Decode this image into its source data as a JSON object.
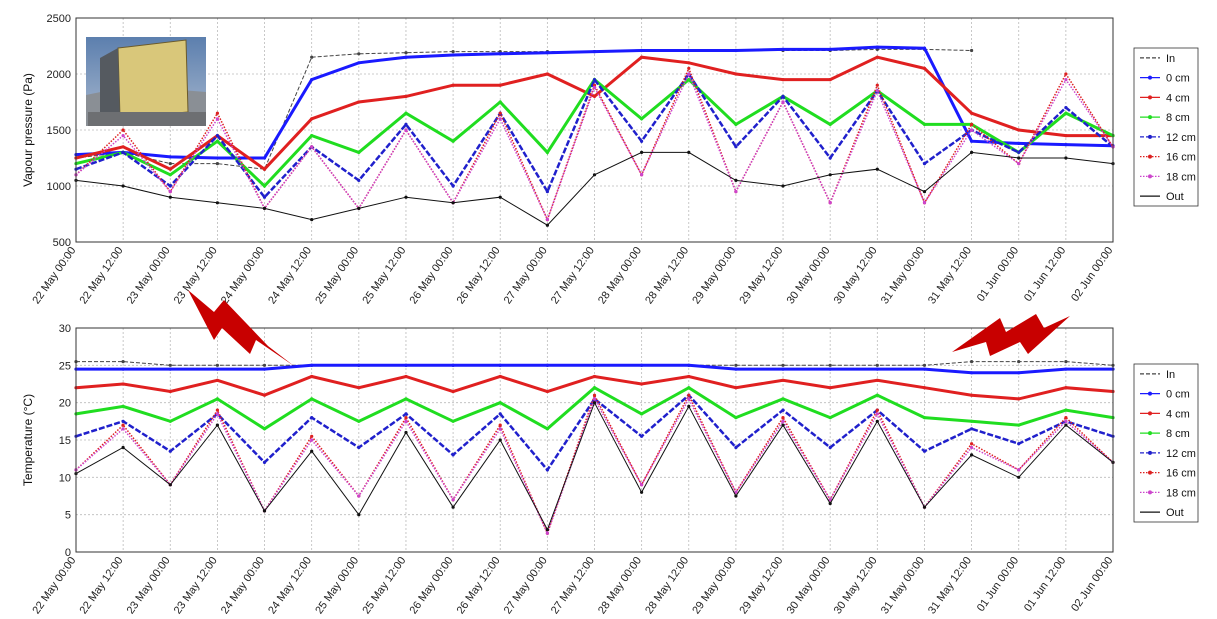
{
  "chart_data": [
    {
      "type": "line",
      "ylabel": "Vapour pressure (Pa)",
      "ylim": [
        500,
        2500
      ],
      "yticks": [
        500,
        1000,
        1500,
        2000,
        2500
      ],
      "grid": true,
      "legend": "right",
      "x_start": "22 May 00:00",
      "x_end": "02 Jun 00:00",
      "x_tick_labels": [
        "22 May 00:00",
        "22 May 12:00",
        "23 May 00:00",
        "23 May 12:00",
        "24 May 00:00",
        "24 May 12:00",
        "25 May 00:00",
        "25 May 12:00",
        "26 May 00:00",
        "26 May 12:00",
        "27 May 00:00",
        "27 May 12:00",
        "28 May 00:00",
        "28 May 12:00",
        "29 May 00:00",
        "29 May 12:00",
        "30 May 00:00",
        "30 May 12:00",
        "31 May 00:00",
        "31 May 12:00",
        "01 Jun 00:00",
        "01 Jun 12:00",
        "02 Jun 00:00"
      ],
      "x": [
        "22 May 00:00",
        "22 May 12:00",
        "23 May 00:00",
        "23 May 12:00",
        "24 May 00:00",
        "24 May 12:00",
        "25 May 00:00",
        "25 May 12:00",
        "26 May 00:00",
        "26 May 12:00",
        "27 May 00:00",
        "27 May 12:00",
        "28 May 00:00",
        "28 May 12:00",
        "29 May 00:00",
        "29 May 12:00",
        "30 May 00:00",
        "30 May 12:00",
        "31 May 00:00",
        "31 May 12:00",
        "01 Jun 00:00",
        "01 Jun 12:00",
        "02 Jun 00:00"
      ],
      "series": [
        {
          "name": "In",
          "color": "#444444",
          "style": "dash",
          "values": [
            1250,
            1300,
            1200,
            1200,
            1150,
            2150,
            2180,
            2190,
            2200,
            2200,
            2200,
            2200,
            2210,
            2210,
            2210,
            2210,
            2210,
            2220,
            2220,
            2210,
            null,
            null,
            null
          ]
        },
        {
          "name": "0 cm",
          "color": "#1a1aff",
          "style": "marker",
          "values": [
            1280,
            1300,
            1260,
            1250,
            1250,
            1950,
            2100,
            2150,
            2170,
            2180,
            2190,
            2200,
            2210,
            2210,
            2210,
            2220,
            2220,
            2240,
            2230,
            1400,
            1380,
            1370,
            1360
          ]
        },
        {
          "name": "4 cm",
          "color": "#e02020",
          "style": "marker",
          "values": [
            1250,
            1350,
            1150,
            1450,
            1150,
            1600,
            1750,
            1800,
            1900,
            1900,
            2000,
            1800,
            2150,
            2100,
            2000,
            1950,
            1950,
            2150,
            2050,
            1650,
            1500,
            1450,
            1450
          ]
        },
        {
          "name": "8 cm",
          "color": "#20dd20",
          "style": "marker",
          "values": [
            1200,
            1300,
            1100,
            1400,
            1000,
            1450,
            1300,
            1650,
            1400,
            1750,
            1300,
            1950,
            1600,
            1950,
            1550,
            1800,
            1550,
            1850,
            1550,
            1550,
            1300,
            1650,
            1450
          ]
        },
        {
          "name": "12 cm",
          "color": "#2020cc",
          "style": "dashmarker",
          "values": [
            1150,
            1300,
            1000,
            1450,
            900,
            1350,
            1050,
            1550,
            1000,
            1650,
            950,
            1950,
            1400,
            2000,
            1350,
            1800,
            1250,
            1850,
            1200,
            1500,
            1300,
            1700,
            1350
          ]
        },
        {
          "name": "16 cm",
          "color": "#dd2020",
          "style": "dot",
          "values": [
            1100,
            1500,
            950,
            1650,
            800,
            1350,
            800,
            1500,
            850,
            1650,
            700,
            1900,
            1100,
            2050,
            950,
            1750,
            850,
            1900,
            850,
            1550,
            1200,
            2000,
            1350
          ]
        },
        {
          "name": "18 cm",
          "color": "#cc44cc",
          "style": "dot",
          "values": [
            1100,
            1450,
            950,
            1600,
            800,
            1350,
            800,
            1500,
            850,
            1600,
            700,
            1880,
            1100,
            2000,
            950,
            1750,
            850,
            1850,
            850,
            1500,
            1200,
            1950,
            1350
          ]
        },
        {
          "name": "Out",
          "color": "#111111",
          "style": "line",
          "values": [
            1050,
            1000,
            900,
            850,
            800,
            700,
            800,
            900,
            850,
            900,
            650,
            1100,
            1300,
            1300,
            1050,
            1000,
            1100,
            1150,
            950,
            1300,
            1250,
            1250,
            1200
          ]
        }
      ]
    },
    {
      "type": "line",
      "ylabel": "Temperature (°C)",
      "ylim": [
        0,
        30
      ],
      "yticks": [
        0,
        5,
        10,
        15,
        20,
        25,
        30
      ],
      "grid": true,
      "legend": "right",
      "x_start": "22 May 00:00",
      "x_end": "02 Jun 00:00",
      "x_tick_labels": [
        "22 May 00:00",
        "22 May 12:00",
        "23 May 00:00",
        "23 May 12:00",
        "24 May 00:00",
        "24 May 12:00",
        "25 May 00:00",
        "25 May 12:00",
        "26 May 00:00",
        "26 May 12:00",
        "27 May 00:00",
        "27 May 12:00",
        "28 May 00:00",
        "28 May 12:00",
        "29 May 00:00",
        "29 May 12:00",
        "30 May 00:00",
        "30 May 12:00",
        "31 May 00:00",
        "31 May 12:00",
        "01 Jun 00:00",
        "01 Jun 12:00",
        "02 Jun 00:00"
      ],
      "x": [
        "22 May 00:00",
        "22 May 12:00",
        "23 May 00:00",
        "23 May 12:00",
        "24 May 00:00",
        "24 May 12:00",
        "25 May 00:00",
        "25 May 12:00",
        "26 May 00:00",
        "26 May 12:00",
        "27 May 00:00",
        "27 May 12:00",
        "28 May 00:00",
        "28 May 12:00",
        "29 May 00:00",
        "29 May 12:00",
        "30 May 00:00",
        "30 May 12:00",
        "31 May 00:00",
        "31 May 12:00",
        "01 Jun 00:00",
        "01 Jun 12:00",
        "02 Jun 00:00"
      ],
      "series": [
        {
          "name": "In",
          "color": "#444444",
          "style": "dash",
          "values": [
            25.5,
            25.5,
            25,
            25,
            25,
            25,
            25,
            25,
            25,
            25,
            25,
            25,
            25,
            25,
            25,
            25,
            25,
            25,
            25,
            25.5,
            25.5,
            25.5,
            25
          ]
        },
        {
          "name": "0 cm",
          "color": "#1a1aff",
          "style": "marker",
          "values": [
            24.5,
            24.5,
            24.5,
            24.5,
            24.5,
            25,
            25,
            25,
            25,
            25,
            25,
            25,
            25,
            25,
            24.5,
            24.5,
            24.5,
            24.5,
            24.5,
            24,
            24,
            24.5,
            24.5
          ]
        },
        {
          "name": "4 cm",
          "color": "#e02020",
          "style": "marker",
          "values": [
            22,
            22.5,
            21.5,
            23,
            21,
            23.5,
            22,
            23.5,
            21.5,
            23.5,
            21.5,
            23.5,
            22.5,
            23.5,
            22,
            23,
            22,
            23,
            22,
            21,
            20.5,
            22,
            21.5
          ]
        },
        {
          "name": "8 cm",
          "color": "#20dd20",
          "style": "marker",
          "values": [
            18.5,
            19.5,
            17.5,
            20.5,
            16.5,
            20.5,
            17.5,
            20.5,
            17.5,
            20,
            16.5,
            22,
            18.5,
            22,
            18,
            20.5,
            18,
            21,
            18,
            17.5,
            17,
            19,
            18
          ]
        },
        {
          "name": "12 cm",
          "color": "#2020cc",
          "style": "dashmarker",
          "values": [
            15.5,
            17.5,
            13.5,
            18.5,
            12,
            18,
            14,
            18.5,
            13,
            18.5,
            11,
            20.5,
            15.5,
            21,
            14,
            19,
            14,
            19,
            13.5,
            16.5,
            14.5,
            17.5,
            15.5
          ]
        },
        {
          "name": "16 cm",
          "color": "#dd2020",
          "style": "dot",
          "values": [
            11,
            17,
            9,
            19,
            5.5,
            15.5,
            7.5,
            18,
            7,
            17,
            2.5,
            21,
            9,
            21,
            8,
            18,
            7,
            19,
            6,
            14.5,
            11,
            18,
            12
          ]
        },
        {
          "name": "18 cm",
          "color": "#cc44cc",
          "style": "dot",
          "values": [
            11,
            16.5,
            9,
            18.5,
            5.5,
            15,
            7.5,
            17.5,
            7,
            16.5,
            2.5,
            20.5,
            9,
            20.5,
            8,
            17.5,
            7,
            18.5,
            6,
            14,
            11,
            17.5,
            12
          ]
        },
        {
          "name": "Out",
          "color": "#111111",
          "style": "line",
          "values": [
            10.5,
            14,
            9,
            17,
            5.5,
            13.5,
            5,
            16,
            6,
            15,
            3,
            20,
            8,
            19.5,
            7.5,
            17,
            6.5,
            17.5,
            6,
            13,
            10,
            17,
            12
          ]
        }
      ]
    }
  ],
  "legend_icon_names": [
    "house-photo",
    "lightning-arrow-left",
    "lightning-arrow-right"
  ]
}
